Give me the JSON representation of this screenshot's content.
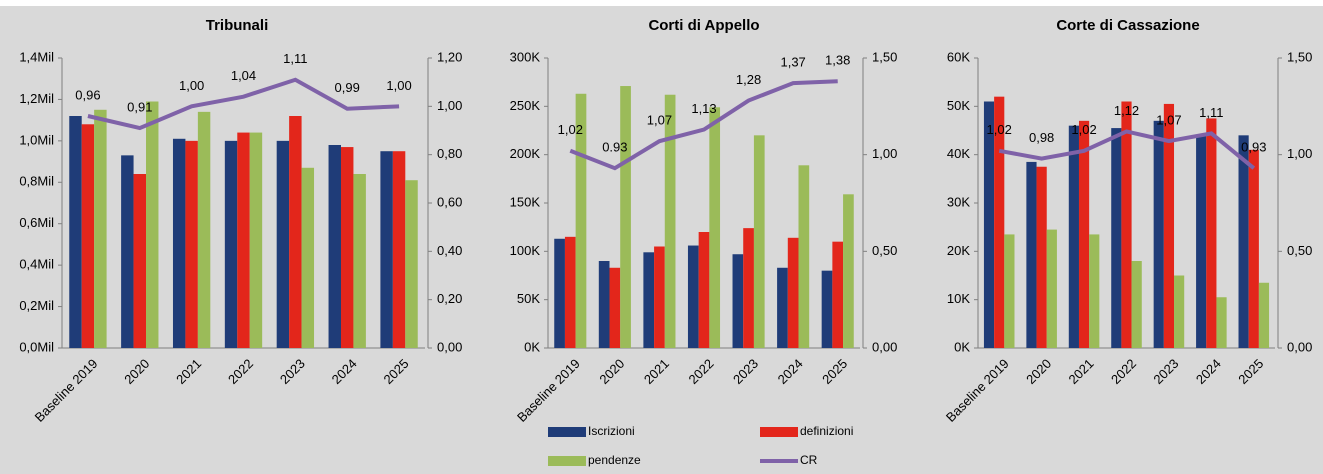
{
  "chart_data": [
    {
      "type": "bar",
      "title": "Tribunali",
      "categories": [
        "Baseline 2019",
        "2020",
        "2021",
        "2022",
        "2023",
        "2024",
        "2025"
      ],
      "series": [
        {
          "color": "#1f3c78",
          "values": [
            1120000,
            930000,
            1010000,
            1000000,
            1000000,
            980000,
            950000
          ]
        },
        {
          "color": "#e3261b",
          "values": [
            1080000,
            840000,
            1000000,
            1040000,
            1120000,
            970000,
            950000
          ]
        },
        {
          "color": "#9bbb59",
          "values": [
            1150000,
            1190000,
            1140000,
            1040000,
            870000,
            840000,
            810000
          ]
        },
        {
          "color": "#7f62a8",
          "axis": "y2",
          "values": [
            0.96,
            0.91,
            1.0,
            1.04,
            1.11,
            0.99,
            1.0
          ],
          "value_labels": [
            "0,96",
            "0,91",
            "1,00",
            "1,04",
            "1,11",
            "0,99",
            "1,00"
          ]
        }
      ],
      "ylim": [
        0,
        1400000
      ],
      "yticks": [
        {
          "value": 0,
          "label": "0,0Mil"
        },
        {
          "value": 200000,
          "label": "0,2Mil"
        },
        {
          "value": 400000,
          "label": "0,4Mil"
        },
        {
          "value": 600000,
          "label": "0,6Mil"
        },
        {
          "value": 800000,
          "label": "0,8Mil"
        },
        {
          "value": 1000000,
          "label": "1,0Mil"
        },
        {
          "value": 1200000,
          "label": "1,2Mil"
        },
        {
          "value": 1400000,
          "label": "1,4Mil"
        }
      ],
      "y2lim": [
        0,
        1.2
      ],
      "y2ticks": [
        {
          "value": 0,
          "label": "0,00"
        },
        {
          "value": 0.2,
          "label": "0,20"
        },
        {
          "value": 0.4,
          "label": "0,40"
        },
        {
          "value": 0.6,
          "label": "0,60"
        },
        {
          "value": 0.8,
          "label": "0,80"
        },
        {
          "value": 1,
          "label": "1,00"
        },
        {
          "value": 1.2,
          "label": "1,20"
        }
      ]
    },
    {
      "type": "bar",
      "title": "Corti di Appello",
      "categories": [
        "Baseline 2019",
        "2020",
        "2021",
        "2022",
        "2023",
        "2024",
        "2025"
      ],
      "series": [
        {
          "name": "Iscrizioni",
          "color": "#1f3c78",
          "values": [
            113000,
            90000,
            99000,
            106000,
            97000,
            83000,
            80000
          ]
        },
        {
          "name": "definizioni",
          "color": "#e3261b",
          "values": [
            115000,
            83000,
            105000,
            120000,
            124000,
            114000,
            110000
          ]
        },
        {
          "name": "pendenze",
          "color": "#9bbb59",
          "values": [
            263000,
            271000,
            262000,
            249000,
            220000,
            189000,
            159000
          ]
        },
        {
          "name": "CR",
          "color": "#7f62a8",
          "axis": "y2",
          "values": [
            1.02,
            0.93,
            1.07,
            1.13,
            1.28,
            1.37,
            1.38
          ],
          "value_labels": [
            "1,02",
            "0.93",
            "1,07",
            "1,13",
            "1,28",
            "1,37",
            "1,38"
          ]
        }
      ],
      "legend": "bottom",
      "ylim": [
        0,
        300000
      ],
      "yticks": [
        {
          "value": 0,
          "label": "0K"
        },
        {
          "value": 50000,
          "label": "50K"
        },
        {
          "value": 100000,
          "label": "100K"
        },
        {
          "value": 150000,
          "label": "150K"
        },
        {
          "value": 200000,
          "label": "200K"
        },
        {
          "value": 250000,
          "label": "250K"
        },
        {
          "value": 300000,
          "label": "300K"
        }
      ],
      "y2lim": [
        0,
        1.5
      ],
      "y2ticks": [
        {
          "value": 0,
          "label": "0,00"
        },
        {
          "value": 0.5,
          "label": "0,50"
        },
        {
          "value": 1,
          "label": "1,00"
        },
        {
          "value": 1.5,
          "label": "1,50"
        }
      ]
    },
    {
      "type": "bar",
      "title": "Corte di Cassazione",
      "categories": [
        "Baseline 2019",
        "2020",
        "2021",
        "2022",
        "2023",
        "2024",
        "2025"
      ],
      "series": [
        {
          "color": "#1f3c78",
          "values": [
            51000,
            38500,
            46000,
            45500,
            47000,
            44000,
            44000
          ]
        },
        {
          "color": "#e3261b",
          "values": [
            52000,
            37500,
            47000,
            51000,
            50500,
            47500,
            41000
          ]
        },
        {
          "color": "#9bbb59",
          "values": [
            23500,
            24500,
            23500,
            18000,
            15000,
            10500,
            13500
          ]
        },
        {
          "color": "#7f62a8",
          "axis": "y2",
          "values": [
            1.02,
            0.98,
            1.02,
            1.12,
            1.07,
            1.11,
            0.93
          ],
          "value_labels": [
            "1,02",
            "0,98",
            "1,02",
            "1,12",
            "1,07",
            "1,11",
            "0,93"
          ]
        }
      ],
      "ylim": [
        0,
        60000
      ],
      "yticks": [
        {
          "value": 0,
          "label": "0K"
        },
        {
          "value": 10000,
          "label": "10K"
        },
        {
          "value": 20000,
          "label": "20K"
        },
        {
          "value": 30000,
          "label": "30K"
        },
        {
          "value": 40000,
          "label": "40K"
        },
        {
          "value": 50000,
          "label": "50K"
        },
        {
          "value": 60000,
          "label": "60K"
        }
      ],
      "y2lim": [
        0,
        1.5
      ],
      "y2ticks": [
        {
          "value": 0,
          "label": "0,00"
        },
        {
          "value": 0.5,
          "label": "0,50"
        },
        {
          "value": 1,
          "label": "1,00"
        },
        {
          "value": 1.5,
          "label": "1,50"
        }
      ]
    }
  ]
}
